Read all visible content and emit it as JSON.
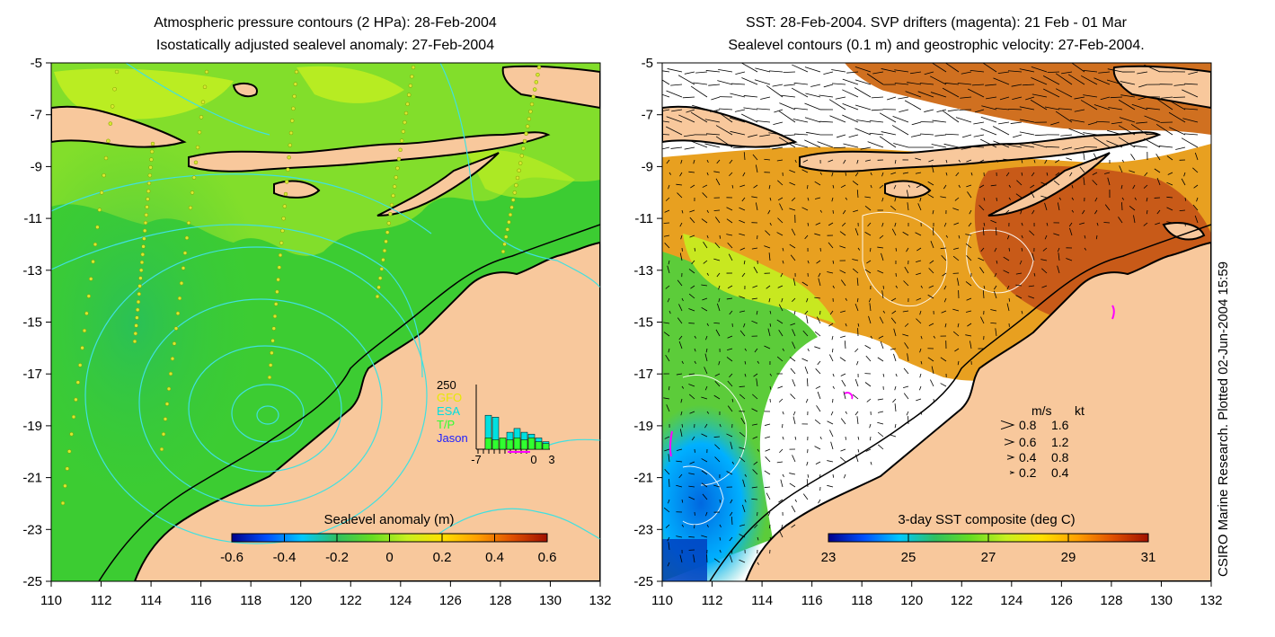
{
  "left_map": {
    "title_line1": "Atmospheric pressure contours (2 HPa): 28-Feb-2004",
    "title_line2": "Isostatically adjusted sealevel anomaly: 27-Feb-2004",
    "colorbar_label": "Sealevel anomaly (m)",
    "colorbar_ticks": [
      "-0.6",
      "-0.4",
      "-0.2",
      "0",
      "0.2",
      "0.4",
      "0.6"
    ],
    "colorbar_colors": [
      "#00008b",
      "#0050ff",
      "#00c8ff",
      "#30c060",
      "#66dd22",
      "#c8f020",
      "#ffe000",
      "#ffa000",
      "#e05000",
      "#a01000"
    ],
    "legend": {
      "max_label": "250",
      "items": [
        {
          "label": "GFO",
          "color": "#e8e800"
        },
        {
          "label": "ESA",
          "color": "#00e0e0"
        },
        {
          "label": "T/P",
          "color": "#30ff30"
        },
        {
          "label": "Jason",
          "color": "#2020ff"
        }
      ],
      "x_ticks": [
        "-7",
        "0",
        "3"
      ]
    }
  },
  "right_map": {
    "title_line1": "SST: 28-Feb-2004. SVP drifters (magenta): 21 Feb - 01 Mar",
    "title_line2": "Sealevel contours (0.1 m) and geostrophic velocity: 27-Feb-2004.",
    "colorbar_label": "3-day SST composite (deg C)",
    "colorbar_ticks": [
      "23",
      "25",
      "27",
      "29",
      "31"
    ],
    "colorbar_colors": [
      "#00008b",
      "#0050ff",
      "#00c8ff",
      "#30c060",
      "#66dd22",
      "#c8f020",
      "#ffe000",
      "#ffa000",
      "#e05000",
      "#a01000"
    ],
    "velocity_legend": {
      "header_ms": "m/s",
      "header_kt": "kt",
      "rows": [
        {
          "ms": "0.8",
          "kt": "1.6"
        },
        {
          "ms": "0.6",
          "kt": "1.2"
        },
        {
          "ms": "0.4",
          "kt": "0.8"
        },
        {
          "ms": "0.2",
          "kt": "0.4"
        }
      ]
    },
    "side_text": "CSIRO Marine Research. Plotted 02-Jun-2004 15:59"
  },
  "axes": {
    "lat_ticks": [
      "-5",
      "-7",
      "-9",
      "-11",
      "-13",
      "-15",
      "-17",
      "-19",
      "-21",
      "-23",
      "-25"
    ],
    "lon_ticks": [
      "110",
      "112",
      "114",
      "116",
      "118",
      "120",
      "122",
      "124",
      "126",
      "128",
      "130",
      "132"
    ]
  },
  "colors": {
    "land": "#f8c89c",
    "ocean_green": "#3ccc32",
    "sst_orange": "#e8a020",
    "contour": "#40e0e0",
    "drifter": "#ff00ff"
  }
}
